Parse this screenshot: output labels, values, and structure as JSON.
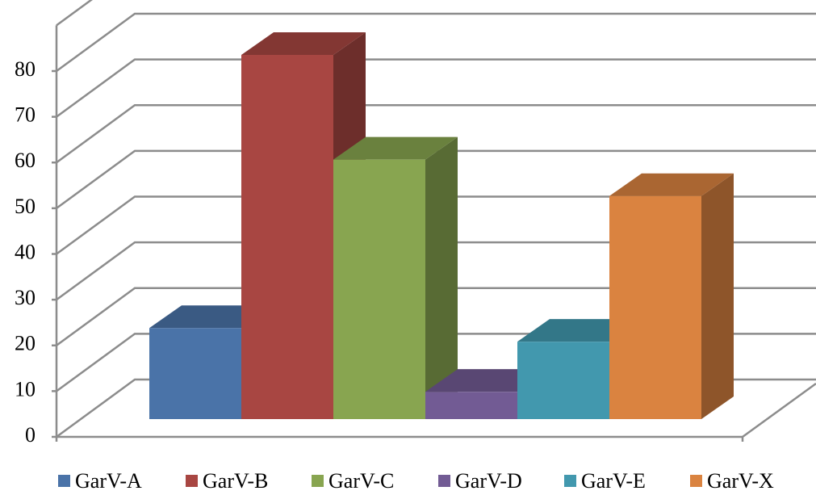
{
  "chart_data": {
    "type": "bar",
    "title": "",
    "xlabel": "",
    "ylabel": "",
    "ylim": [
      0,
      80
    ],
    "yticks": [
      "0",
      "10",
      "20",
      "30",
      "40",
      "50",
      "60",
      "70",
      "80"
    ],
    "grid": true,
    "legend_position": "bottom",
    "style": "3d-clustered-column",
    "series": [
      {
        "name": "GarV-A",
        "value": 20,
        "color": "#4A73A8"
      },
      {
        "name": "GarV-B",
        "value": 80,
        "color": "#A84642"
      },
      {
        "name": "GarV-C",
        "value": 57,
        "color": "#88A550"
      },
      {
        "name": "GarV-D",
        "value": 6,
        "color": "#725B94"
      },
      {
        "name": "GarV-E",
        "value": 17,
        "color": "#4298AE"
      },
      {
        "name": "GarV-X",
        "value": 49,
        "color": "#DA8340"
      }
    ]
  }
}
